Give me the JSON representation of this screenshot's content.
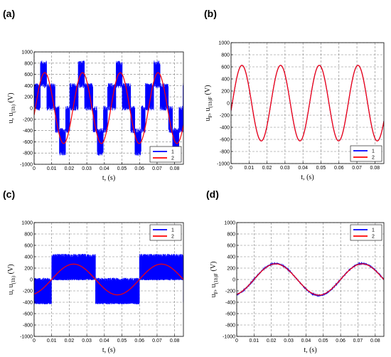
{
  "chart_data": [
    {
      "panel": "(a)",
      "type": "line",
      "title": "",
      "xlabel": "t,  (s)",
      "ylabel_parts": [
        "u",
        ", u",
        "(1h)",
        "   (V)"
      ],
      "xlim": [
        0,
        0.085
      ],
      "ylim": [
        -1000,
        1000
      ],
      "xticks": [
        "0",
        "0.01",
        "0.02",
        "0.03",
        "0.04",
        "0.05",
        "0.06",
        "0.07",
        "0.08"
      ],
      "yticks": [
        "-1000",
        "-800",
        "-600",
        "-400",
        "-200",
        "0",
        "200",
        "400",
        "600",
        "800",
        "1000"
      ],
      "grid": true,
      "legend_position": "bottom-right",
      "series": [
        {
          "name": "1",
          "color": "#0000ff",
          "kind": "pwm_staircase",
          "levels": [
            400,
            800
          ],
          "noise": 90,
          "frequency_hz": 46.5
        },
        {
          "name": "2",
          "color": "#ff0000",
          "kind": "sine",
          "amplitude": 630,
          "frequency_hz": 46.5
        }
      ]
    },
    {
      "panel": "(b)",
      "type": "line",
      "title": "",
      "xlabel": "t,  (s)",
      "ylabel_parts": [
        "u",
        "F",
        ", u",
        "(1h)F",
        "   (V)"
      ],
      "xlim": [
        0,
        0.085
      ],
      "ylim": [
        -1000,
        1000
      ],
      "xticks": [
        "0",
        "0.01",
        "0.02",
        "0.03",
        "0.04",
        "0.05",
        "0.06",
        "0.07",
        "0.08"
      ],
      "yticks": [
        "-1000",
        "-800",
        "-600",
        "-400",
        "-200",
        "0",
        "200",
        "400",
        "600",
        "800",
        "1000"
      ],
      "grid": true,
      "legend_position": "bottom-right",
      "series": [
        {
          "name": "1",
          "color": "#0000ff",
          "kind": "sine",
          "amplitude": 625,
          "frequency_hz": 46.5
        },
        {
          "name": "2",
          "color": "#ff0000",
          "kind": "sine",
          "amplitude": 625,
          "frequency_hz": 46.5
        }
      ]
    },
    {
      "panel": "(c)",
      "type": "line",
      "title": "",
      "xlabel": "t,  (s)",
      "ylabel_parts": [
        "u",
        ", u",
        "(1h)",
        "   (V)"
      ],
      "xlim": [
        0,
        0.085
      ],
      "ylim": [
        -1000,
        1000
      ],
      "xticks": [
        "0",
        "0.01",
        "0.02",
        "0.03",
        "0.04",
        "0.05",
        "0.06",
        "0.07",
        "0.08"
      ],
      "yticks": [
        "-1000",
        "-800",
        "-600",
        "-400",
        "-200",
        "0",
        "200",
        "400",
        "600",
        "800",
        "1000"
      ],
      "grid": true,
      "legend_position": "top-right",
      "series": [
        {
          "name": "1",
          "color": "#0000ff",
          "kind": "pwm_square",
          "high_band": [
            0,
            420
          ],
          "low_band": [
            -420,
            0
          ],
          "frequency_hz": 20
        },
        {
          "name": "2",
          "color": "#ff0000",
          "kind": "sine_phase",
          "amplitude": 270,
          "frequency_hz": 20
        }
      ]
    },
    {
      "panel": "(d)",
      "type": "line",
      "title": "",
      "xlabel": "t,  (s)",
      "ylabel_parts": [
        "u",
        "F",
        ", u",
        "(1h)F",
        "   (V)"
      ],
      "xlim": [
        0,
        0.085
      ],
      "ylim": [
        -1000,
        1000
      ],
      "xticks": [
        "0",
        "0.01",
        "0.02",
        "0.03",
        "0.04",
        "0.05",
        "0.06",
        "0.07",
        "0.08"
      ],
      "yticks": [
        "-1000",
        "-800",
        "-600",
        "-400",
        "-200",
        "0",
        "200",
        "400",
        "600",
        "800",
        "1000"
      ],
      "grid": true,
      "legend_position": "top-right",
      "series": [
        {
          "name": "1",
          "color": "#0000ff",
          "kind": "sine_phase",
          "amplitude": 280,
          "frequency_hz": 20
        },
        {
          "name": "2",
          "color": "#ff0000",
          "kind": "sine_phase",
          "amplitude": 275,
          "frequency_hz": 20
        }
      ]
    }
  ],
  "colors": {
    "series1": "#0000ff",
    "series2": "#ff0000",
    "grid": "#808080"
  }
}
